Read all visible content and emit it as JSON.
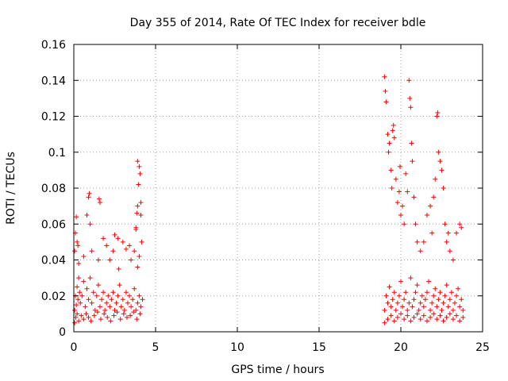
{
  "chart_data": {
    "type": "scatter",
    "title": "Day 355 of 2014, Rate Of TEC Index for receiver bdle",
    "xlabel": "GPS time / hours",
    "ylabel": "ROTI / TECUs",
    "xlim": [
      0,
      25
    ],
    "ylim": [
      0,
      0.16
    ],
    "xticks": [
      0,
      5,
      10,
      15,
      20,
      25
    ],
    "yticks": [
      0,
      0.02,
      0.04,
      0.06,
      0.08,
      0.1,
      0.12,
      0.14,
      0.16
    ],
    "xtick_labels": [
      "0",
      "5",
      "10",
      "15",
      "20",
      "25"
    ],
    "ytick_labels": [
      "0",
      "0.02",
      "0.04",
      "0.06",
      "0.08",
      "0.1",
      "0.12",
      "0.14",
      "0.16"
    ],
    "grid": true,
    "marker": "plus",
    "color": "#ff0000",
    "series": [
      {
        "x": [
          0.05,
          0.1,
          0.15,
          0.2,
          0.25,
          0.3,
          0.35,
          0.4,
          0.5,
          0.6,
          0.7,
          0.8,
          0.9,
          1.0,
          1.1,
          1.2,
          1.3,
          1.4,
          1.5,
          1.6,
          1.7,
          1.8,
          1.9,
          2.0,
          2.1,
          2.2,
          2.3,
          2.4,
          2.5,
          2.6,
          2.7,
          2.8,
          2.9,
          3.0,
          3.1,
          3.2,
          3.3,
          3.4,
          3.5,
          3.6,
          3.7,
          3.8,
          3.9,
          4.0,
          4.1,
          4.2,
          0.05,
          0.12,
          0.2,
          0.3,
          0.45,
          0.6,
          0.75,
          0.9,
          1.05,
          1.25,
          1.45,
          1.65,
          1.85,
          2.05,
          2.25,
          2.45,
          2.65,
          2.85,
          3.05,
          3.25,
          3.45,
          3.65,
          3.85,
          4.05,
          0.05,
          0.1,
          0.15,
          0.2,
          0.3,
          0.25,
          0.6,
          0.9,
          0.8,
          0.95,
          1.0,
          1.1,
          1.5,
          1.55,
          1.6,
          1.8,
          2.0,
          2.2,
          2.4,
          2.5,
          2.7,
          2.75,
          3.0,
          3.2,
          3.4,
          3.5,
          3.7,
          3.8,
          3.9,
          4.0,
          4.05,
          4.1,
          3.95,
          3.9,
          3.85,
          3.8,
          4.1,
          4.15,
          4.0,
          3.9
        ],
        "y": [
          0.012,
          0.02,
          0.015,
          0.025,
          0.018,
          0.03,
          0.022,
          0.016,
          0.02,
          0.028,
          0.014,
          0.024,
          0.018,
          0.03,
          0.016,
          0.022,
          0.012,
          0.02,
          0.026,
          0.014,
          0.018,
          0.022,
          0.012,
          0.016,
          0.02,
          0.014,
          0.018,
          0.022,
          0.012,
          0.016,
          0.02,
          0.026,
          0.014,
          0.018,
          0.012,
          0.022,
          0.016,
          0.02,
          0.014,
          0.018,
          0.024,
          0.012,
          0.016,
          0.02,
          0.014,
          0.018,
          0.005,
          0.008,
          0.01,
          0.006,
          0.009,
          0.007,
          0.01,
          0.008,
          0.006,
          0.009,
          0.011,
          0.007,
          0.01,
          0.008,
          0.006,
          0.009,
          0.011,
          0.007,
          0.01,
          0.008,
          0.009,
          0.011,
          0.007,
          0.01,
          0.045,
          0.055,
          0.064,
          0.05,
          0.038,
          0.048,
          0.042,
          0.075,
          0.065,
          0.077,
          0.06,
          0.045,
          0.04,
          0.074,
          0.072,
          0.052,
          0.048,
          0.04,
          0.045,
          0.054,
          0.052,
          0.035,
          0.05,
          0.046,
          0.048,
          0.04,
          0.045,
          0.057,
          0.095,
          0.092,
          0.088,
          0.072,
          0.082,
          0.07,
          0.066,
          0.058,
          0.065,
          0.05,
          0.042,
          0.036
        ]
      },
      {
        "x": [
          19.0,
          19.1,
          19.2,
          19.3,
          19.4,
          19.5,
          19.6,
          19.7,
          19.8,
          19.9,
          20.0,
          20.1,
          20.2,
          20.3,
          20.4,
          20.5,
          20.6,
          20.7,
          20.8,
          20.9,
          21.0,
          21.1,
          21.2,
          21.3,
          21.4,
          21.5,
          21.6,
          21.7,
          21.8,
          21.9,
          22.0,
          22.1,
          22.2,
          22.3,
          22.4,
          22.5,
          22.6,
          22.7,
          22.8,
          22.9,
          23.0,
          23.1,
          23.2,
          23.3,
          23.4,
          23.5,
          23.6,
          23.7,
          23.8,
          19.0,
          19.2,
          19.4,
          19.6,
          19.8,
          20.0,
          20.2,
          20.4,
          20.6,
          20.8,
          21.0,
          21.2,
          21.4,
          21.6,
          21.8,
          22.0,
          22.2,
          22.4,
          22.6,
          22.8,
          23.0,
          23.2,
          23.4,
          23.6,
          23.8,
          19.0,
          19.05,
          19.1,
          19.2,
          19.25,
          19.3,
          19.4,
          19.45,
          19.5,
          19.55,
          19.6,
          19.7,
          19.8,
          19.9,
          19.95,
          20.0,
          20.1,
          20.2,
          20.3,
          20.4,
          20.5,
          20.55,
          20.6,
          20.65,
          20.7,
          20.8,
          20.9,
          21.0,
          21.2,
          21.4,
          21.6,
          21.8,
          21.9,
          22.0,
          22.1,
          22.2,
          22.25,
          22.3,
          22.4,
          22.5,
          22.6,
          22.7,
          22.8,
          22.9,
          23.0,
          23.2,
          23.4,
          23.6,
          23.7
        ],
        "y": [
          0.012,
          0.02,
          0.016,
          0.025,
          0.014,
          0.018,
          0.022,
          0.012,
          0.016,
          0.02,
          0.028,
          0.014,
          0.018,
          0.022,
          0.012,
          0.016,
          0.03,
          0.014,
          0.018,
          0.022,
          0.026,
          0.012,
          0.016,
          0.02,
          0.014,
          0.018,
          0.022,
          0.028,
          0.012,
          0.016,
          0.02,
          0.024,
          0.014,
          0.018,
          0.022,
          0.012,
          0.016,
          0.02,
          0.026,
          0.014,
          0.018,
          0.022,
          0.012,
          0.016,
          0.02,
          0.024,
          0.014,
          0.018,
          0.012,
          0.005,
          0.007,
          0.009,
          0.006,
          0.008,
          0.01,
          0.007,
          0.009,
          0.006,
          0.008,
          0.01,
          0.007,
          0.009,
          0.006,
          0.008,
          0.01,
          0.007,
          0.009,
          0.006,
          0.008,
          0.01,
          0.007,
          0.009,
          0.006,
          0.008,
          0.142,
          0.134,
          0.128,
          0.11,
          0.1,
          0.105,
          0.09,
          0.08,
          0.112,
          0.115,
          0.108,
          0.085,
          0.072,
          0.078,
          0.092,
          0.065,
          0.07,
          0.06,
          0.088,
          0.078,
          0.14,
          0.13,
          0.125,
          0.105,
          0.095,
          0.075,
          0.06,
          0.05,
          0.045,
          0.05,
          0.065,
          0.07,
          0.055,
          0.075,
          0.085,
          0.12,
          0.122,
          0.1,
          0.095,
          0.09,
          0.08,
          0.06,
          0.05,
          0.055,
          0.045,
          0.04,
          0.055,
          0.06,
          0.058
        ]
      }
    ]
  }
}
